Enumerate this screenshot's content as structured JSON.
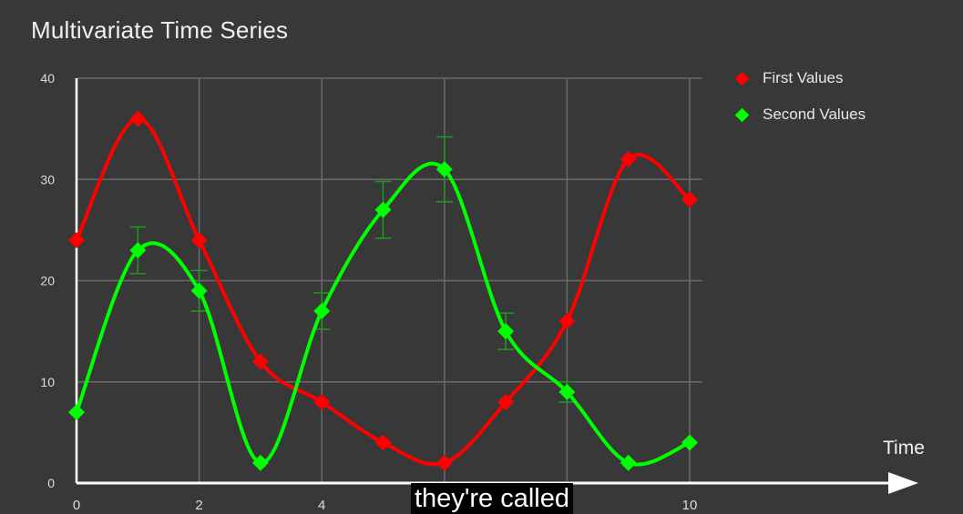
{
  "chart_data": {
    "type": "line",
    "title": "Multivariate Time Series",
    "xlabel": "Time",
    "ylabel": "",
    "xlim": [
      0,
      10
    ],
    "ylim": [
      0,
      40
    ],
    "x_ticks": [
      0,
      2,
      4,
      6,
      8,
      10
    ],
    "x_tick_labels": [
      "0",
      "2",
      "4",
      "",
      "",
      "10"
    ],
    "y_ticks": [
      0,
      10,
      20,
      30,
      40
    ],
    "y_tick_labels": [
      "0",
      "10",
      "20",
      "30",
      "40"
    ],
    "grid": true,
    "legend_position": "top-right",
    "x": [
      0,
      1,
      2,
      3,
      4,
      5,
      6,
      7,
      8,
      9,
      10
    ],
    "series": [
      {
        "name": "First Values",
        "color": "#ff0000",
        "values": [
          24,
          36,
          24,
          12,
          8,
          4,
          2,
          8,
          16,
          32,
          28
        ]
      },
      {
        "name": "Second Values",
        "color": "#00ff00",
        "values": [
          7,
          23,
          19,
          2,
          17,
          27,
          31,
          15,
          9,
          2,
          4
        ],
        "error_bars": [
          null,
          2.3,
          2,
          null,
          1.8,
          2.8,
          3.2,
          1.8,
          1,
          null,
          null
        ]
      }
    ]
  },
  "caption": "they're called"
}
